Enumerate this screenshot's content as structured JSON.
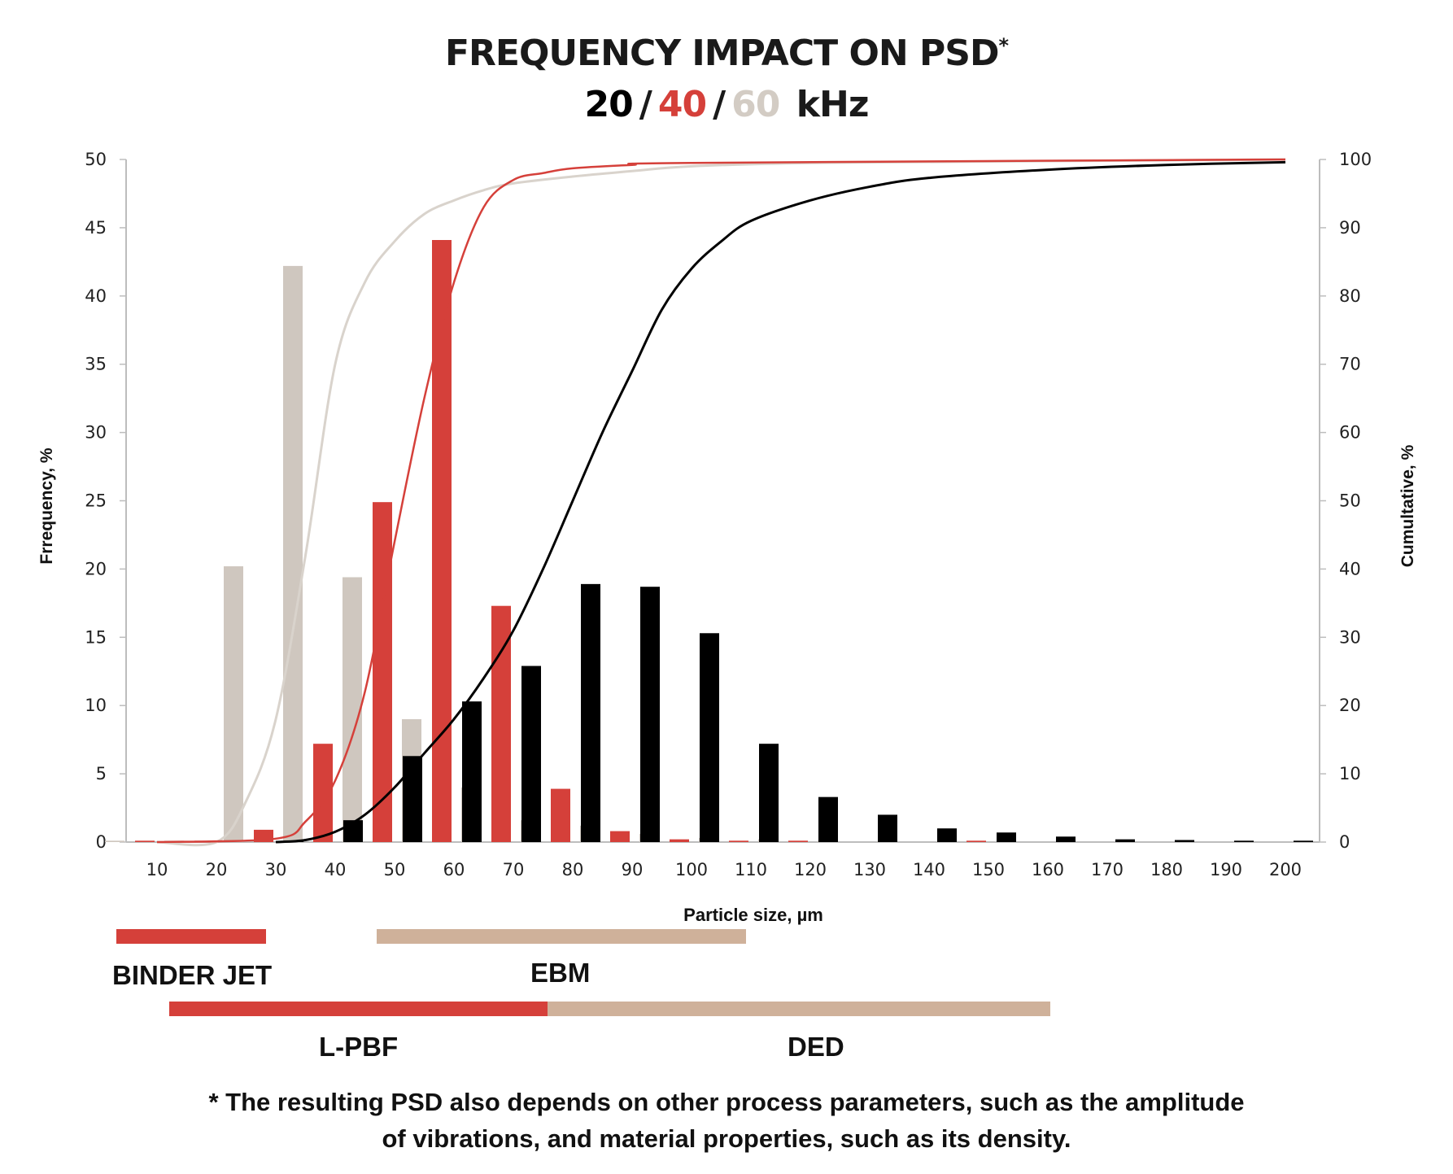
{
  "title": {
    "main": "FREQUENCY IMPACT ON PSD",
    "asterisk": "*",
    "freq1": "20",
    "freq2": "40",
    "freq3": "60",
    "separator": "/",
    "unit": "kHz"
  },
  "colors": {
    "f20": "#000000",
    "f40": "#d5403a",
    "f60": "#cfc7bf",
    "f60_line": "#d9d3cc",
    "range_red": "#d5403a",
    "range_tan": "#cfb19a",
    "axis": "#bdbdbd"
  },
  "chart_data": {
    "type": "bar",
    "xlabel": "Particle size, µm",
    "ylabel_left": "Frrequency, %",
    "ylabel_right": "Cumultative, %",
    "ylim_left": [
      0,
      50
    ],
    "ylim_right": [
      0,
      100
    ],
    "yticks_left": [
      "0",
      "5",
      "10",
      "15",
      "20",
      "25",
      "30",
      "35",
      "40",
      "45",
      "50"
    ],
    "yticks_right": [
      "0",
      "10",
      "20",
      "30",
      "40",
      "50",
      "60",
      "70",
      "80",
      "90",
      "100"
    ],
    "categories": [
      "10",
      "20",
      "30",
      "40",
      "50",
      "60",
      "70",
      "80",
      "90",
      "100",
      "110",
      "120",
      "130",
      "140",
      "150",
      "160",
      "170",
      "180",
      "190",
      "200"
    ],
    "series": [
      {
        "name": "60 kHz",
        "values": [
          0.1,
          0.1,
          20.2,
          42.2,
          19.4,
          9.0,
          4.0,
          1.6,
          1.2,
          0.6,
          0.3,
          0.2,
          0.1,
          0.05,
          0.05,
          0.0,
          0.0,
          0.0,
          0.0,
          0.0
        ],
        "cumulative_x": [
          10,
          20,
          25,
          30,
          35,
          40,
          45,
          50,
          55,
          60,
          65,
          70,
          80,
          90,
          100,
          120,
          150,
          200
        ],
        "cumulative_y": [
          0,
          0,
          6,
          18,
          42,
          70,
          82,
          88,
          92,
          94,
          95.5,
          96.5,
          97.5,
          98.3,
          99,
          99.5,
          99.7,
          100
        ]
      },
      {
        "name": "40 kHz",
        "values": [
          0.1,
          0.1,
          0.9,
          7.2,
          24.9,
          44.1,
          17.3,
          3.9,
          0.8,
          0.2,
          0.1,
          0.1,
          0.0,
          0.0,
          0.1,
          0.0,
          0.0,
          0.0,
          0.0,
          0.0
        ],
        "cumulative_x": [
          10,
          30,
          35,
          40,
          45,
          50,
          55,
          60,
          65,
          70,
          75,
          80,
          90,
          100,
          200
        ],
        "cumulative_y": [
          0,
          0.5,
          3,
          9,
          22,
          44,
          65,
          82,
          93,
          97,
          98,
          98.7,
          99.2,
          99.5,
          100
        ]
      },
      {
        "name": "20 kHz",
        "values": [
          0.0,
          0.0,
          0.1,
          1.6,
          6.3,
          10.3,
          12.9,
          18.9,
          18.7,
          15.3,
          7.2,
          3.3,
          2.0,
          1.0,
          0.7,
          0.4,
          0.2,
          0.15,
          0.1,
          0.1
        ],
        "cumulative_x": [
          30,
          35,
          40,
          45,
          50,
          55,
          60,
          65,
          70,
          75,
          80,
          85,
          90,
          95,
          100,
          105,
          110,
          120,
          130,
          140,
          160,
          180,
          200
        ],
        "cumulative_y": [
          0,
          0.3,
          1.5,
          4,
          8,
          13,
          18,
          24,
          31,
          40,
          50,
          60,
          69,
          78,
          84,
          88,
          91,
          94,
          96,
          97.3,
          98.5,
          99.2,
          99.6
        ]
      }
    ]
  },
  "ranges": [
    {
      "label": "BINDER JET",
      "color_key": "range_red",
      "from": 5,
      "to": 30
    },
    {
      "label": "EBM",
      "color_key": "range_tan",
      "from": 48,
      "to": 110
    },
    {
      "label": "L-PBF",
      "color_key": "range_red",
      "from": 12,
      "to": 75
    },
    {
      "label": "DED",
      "color_key": "range_tan",
      "from": 75,
      "to": 159
    }
  ],
  "footnote": {
    "line1": "* The resulting PSD also depends on other process  parameters, such as the amplitude",
    "line2": "of vibrations, and material properties, such as its density."
  }
}
